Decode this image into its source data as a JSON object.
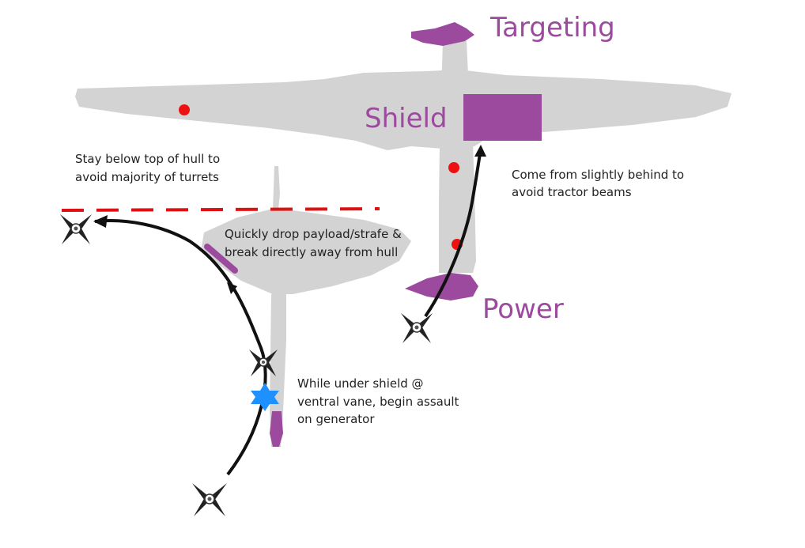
{
  "labels": {
    "targeting": "Targeting",
    "shield": "Shield",
    "power": "Power"
  },
  "notes": {
    "turrets": [
      "Stay below top of hull to",
      "avoid majority of turrets"
    ],
    "tractor": [
      "Come from slightly behind to",
      "avoid tractor beams"
    ],
    "payload": [
      "Quickly drop payload/strafe &",
      "break directly away from hull"
    ],
    "vane": [
      "While under shield @",
      "ventral vane, begin assault",
      "on generator"
    ]
  },
  "colors": {
    "hull": "#d3d3d3",
    "target": "#9b4a9e",
    "turret": "#ee1111",
    "limit_line": "#dd1111",
    "path": "#111111",
    "start_marker": "#1e90ff"
  },
  "icons": [
    "tie-fighter-icon",
    "star-marker-icon",
    "turret-dot-icon"
  ]
}
